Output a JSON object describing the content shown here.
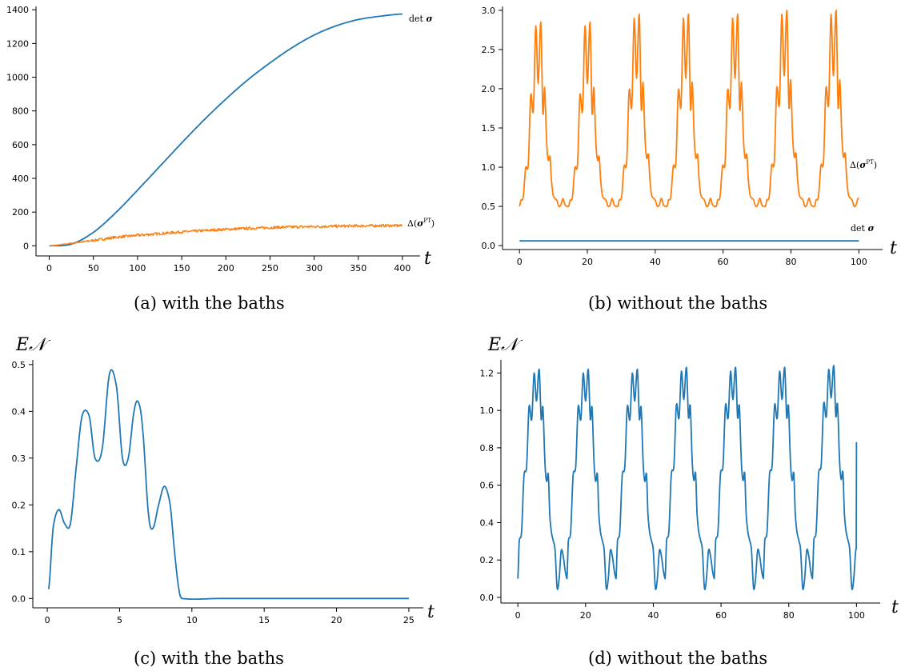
{
  "colors": {
    "blue": "#1f77b4",
    "orange": "#ff7f0e"
  },
  "chart_data": [
    {
      "id": "a",
      "type": "line",
      "caption": "(a) with the baths",
      "xlabel": "t",
      "ylabel": "",
      "xlim": [
        -15,
        420
      ],
      "ylim": [
        -60,
        1420
      ],
      "xticks": [
        0,
        50,
        100,
        150,
        200,
        250,
        300,
        350,
        400
      ],
      "yticks": [
        0,
        200,
        400,
        600,
        800,
        1000,
        1200,
        1400
      ],
      "grid": false,
      "series": [
        {
          "name": "det σ",
          "color": "blue",
          "x": [
            0,
            25,
            50,
            75,
            100,
            125,
            150,
            175,
            200,
            225,
            250,
            275,
            300,
            325,
            350,
            375,
            400
          ],
          "y": [
            0,
            10,
            80,
            195,
            330,
            470,
            610,
            745,
            870,
            985,
            1085,
            1175,
            1250,
            1305,
            1342,
            1362,
            1375
          ]
        },
        {
          "name": "Δ(σ^PT)",
          "color": "orange",
          "noise": 8,
          "x": [
            0,
            25,
            50,
            75,
            100,
            125,
            150,
            175,
            200,
            250,
            300,
            350,
            400
          ],
          "y": [
            0,
            15,
            32,
            50,
            62,
            72,
            82,
            90,
            98,
            108,
            114,
            118,
            120
          ]
        }
      ]
    },
    {
      "id": "b",
      "type": "line",
      "caption": "(b) without the baths",
      "xlabel": "t",
      "ylabel": "",
      "xlim": [
        -5,
        107
      ],
      "ylim": [
        -0.05,
        3.05
      ],
      "xticks": [
        0,
        20,
        40,
        60,
        80,
        100
      ],
      "yticks": [
        0.0,
        0.5,
        1.0,
        1.5,
        2.0,
        2.5,
        3.0
      ],
      "grid": false,
      "period": 14.5,
      "series": [
        {
          "name": "Δ(σ^PT)",
          "color": "orange",
          "x": [
            0,
            0.4,
            1.1,
            1.8,
            2.6,
            3.3,
            4.1,
            4.8,
            5.5,
            6.3,
            6.9,
            7.4,
            8.0,
            8.5,
            9.0,
            9.4,
            9.9,
            10.5,
            11.0,
            11.6,
            12.2,
            12.8,
            13.4,
            14.0,
            14.5
          ],
          "y": [
            0.5,
            0.58,
            0.62,
            1.0,
            1.05,
            1.95,
            1.75,
            2.85,
            2.1,
            2.9,
            1.7,
            2.05,
            1.35,
            1.1,
            1.15,
            0.85,
            0.65,
            0.6,
            0.58,
            0.5,
            0.52,
            0.6,
            0.52,
            0.5,
            0.5
          ],
          "t_end": 100,
          "cycle_peaks": [
            2.85,
            2.85,
            2.95,
            2.95,
            2.95,
            3.0,
            3.0
          ]
        },
        {
          "name": "det σ",
          "color": "blue",
          "x": [
            0,
            100
          ],
          "y": [
            0.06,
            0.06
          ]
        }
      ]
    },
    {
      "id": "c",
      "type": "line",
      "caption": "(c) with the baths",
      "xlabel": "t",
      "ylabel": "E𝒩",
      "xlim": [
        -1,
        26
      ],
      "ylim": [
        -0.02,
        0.51
      ],
      "xticks": [
        0,
        5,
        10,
        15,
        20,
        25
      ],
      "yticks": [
        0.0,
        0.1,
        0.2,
        0.3,
        0.4,
        0.5
      ],
      "grid": false,
      "series": [
        {
          "name": "E𝒩",
          "color": "blue",
          "x": [
            0.1,
            0.4,
            0.8,
            1.2,
            1.6,
            2.0,
            2.4,
            2.9,
            3.3,
            3.8,
            4.3,
            4.8,
            5.2,
            5.6,
            6.0,
            6.3,
            6.6,
            7.0,
            7.3,
            7.7,
            8.1,
            8.5,
            8.8,
            9.1,
            9.3,
            12.0,
            25.0
          ],
          "y": [
            0.02,
            0.15,
            0.19,
            0.16,
            0.16,
            0.28,
            0.39,
            0.39,
            0.3,
            0.32,
            0.48,
            0.45,
            0.3,
            0.3,
            0.4,
            0.42,
            0.36,
            0.18,
            0.15,
            0.2,
            0.24,
            0.2,
            0.1,
            0.02,
            0.0,
            0.0,
            0.0
          ]
        }
      ]
    },
    {
      "id": "d",
      "type": "line",
      "caption": "(d) without the baths",
      "xlabel": "t",
      "ylabel": "E𝒩",
      "xlim": [
        -5,
        107
      ],
      "ylim": [
        -0.03,
        1.27
      ],
      "xticks": [
        0,
        20,
        40,
        60,
        80,
        100
      ],
      "yticks": [
        0.0,
        0.2,
        0.4,
        0.6,
        0.8,
        1.0,
        1.2
      ],
      "grid": false,
      "period": 14.5,
      "series": [
        {
          "name": "E𝒩",
          "color": "blue",
          "x": [
            0,
            0.4,
            1.1,
            1.8,
            2.6,
            3.3,
            4.1,
            4.8,
            5.5,
            6.3,
            6.9,
            7.4,
            8.0,
            8.5,
            9.0,
            9.4,
            9.9,
            10.5,
            11.0,
            11.6,
            12.2,
            12.8,
            13.4,
            14.0,
            14.5
          ],
          "y": [
            0.1,
            0.3,
            0.35,
            0.65,
            0.7,
            1.02,
            0.95,
            1.2,
            1.05,
            1.22,
            0.95,
            1.02,
            0.72,
            0.62,
            0.66,
            0.45,
            0.35,
            0.3,
            0.25,
            0.05,
            0.1,
            0.25,
            0.22,
            0.14,
            0.1
          ],
          "t_end": 100,
          "cycle_peaks": [
            1.22,
            1.22,
            1.22,
            1.23,
            1.23,
            1.23,
            1.24
          ],
          "end_value": 0.83
        }
      ]
    }
  ]
}
